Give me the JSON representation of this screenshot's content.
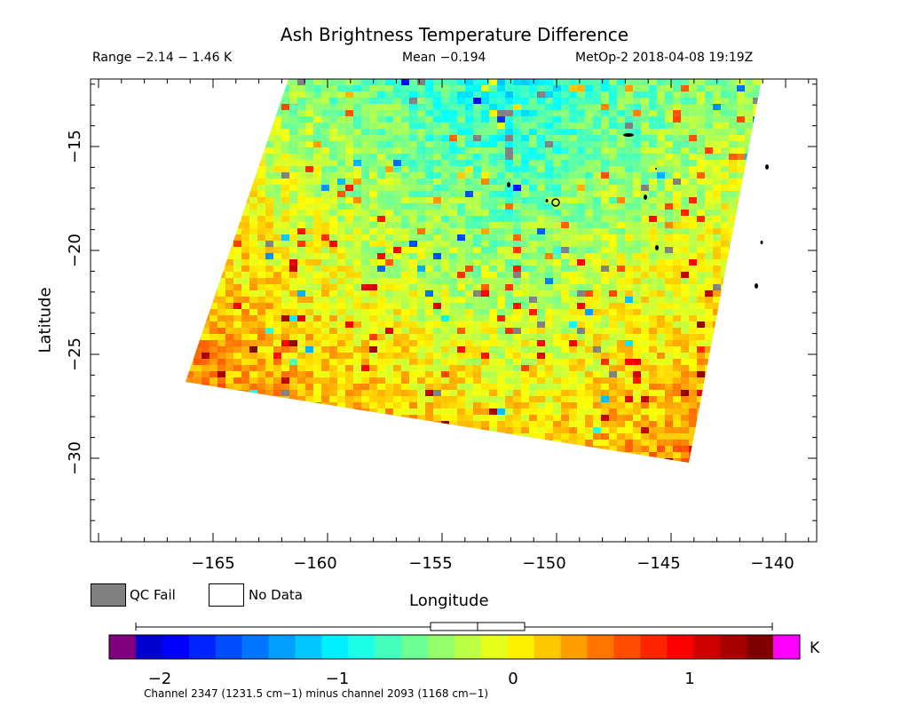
{
  "header": {
    "title": "Ash Brightness Temperature Difference",
    "range": "Range −2.14 − 1.46 K",
    "mean": "Mean −0.194",
    "satellite_time": "MetOp-2 2018-04-08 19:19Z"
  },
  "axes": {
    "xlabel": "Longitude",
    "ylabel": "Latitude",
    "xticks": [
      "−165",
      "−160",
      "−155",
      "−150",
      "−145",
      "−140"
    ],
    "yticks": [
      "−15",
      "−20",
      "−25",
      "−30"
    ]
  },
  "legend": {
    "qc_fail": "QC Fail",
    "no_data": "No Data",
    "qc_color": "#808080"
  },
  "colorbar": {
    "unit": "K",
    "ticks": [
      "−2",
      "−1",
      "0",
      "1"
    ],
    "footnote": "Channel 2347 (1231.5 cm−1) minus channel 2093 (1168 cm−1)"
  }
}
